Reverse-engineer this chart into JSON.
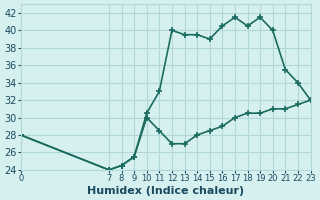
{
  "xlabel": "Humidex (Indice chaleur)",
  "bg_color": "#d6f0ef",
  "grid_color": "#b0d8d6",
  "line_color": "#1a6b60",
  "hours": [
    0,
    7,
    8,
    9,
    10,
    11,
    12,
    13,
    14,
    15,
    16,
    17,
    18,
    19,
    20,
    21,
    22,
    23
  ],
  "upper_line": [
    28,
    24,
    24.5,
    25.5,
    30.5,
    33,
    40,
    39.5,
    39.5,
    39,
    40.5,
    41.5,
    40.5,
    41.5,
    40,
    35.5,
    34,
    32
  ],
  "lower_line": [
    28,
    24,
    24.5,
    25.5,
    30,
    28.5,
    27,
    27,
    28,
    28.5,
    29,
    30,
    30.5,
    30.5,
    31,
    31,
    31.5,
    32
  ],
  "ylim": [
    24,
    43
  ],
  "yticks": [
    24,
    26,
    28,
    30,
    32,
    34,
    36,
    38,
    40,
    42
  ],
  "xtick_positions": [
    0,
    7,
    8,
    9,
    10,
    11,
    12,
    13,
    14,
    15,
    16,
    17,
    18,
    19,
    20,
    21,
    22,
    23
  ],
  "xtick_labels": [
    "0",
    "7",
    "8",
    "9",
    "10",
    "11",
    "12",
    "13",
    "14",
    "15",
    "16",
    "17",
    "18",
    "19",
    "20",
    "21",
    "22",
    "23"
  ],
  "marker": "+",
  "marker_size": 5,
  "line_width": 1.2,
  "xlabel_fontsize": 8,
  "tick_fontsize": 7,
  "tick_color": "#1a4a60"
}
